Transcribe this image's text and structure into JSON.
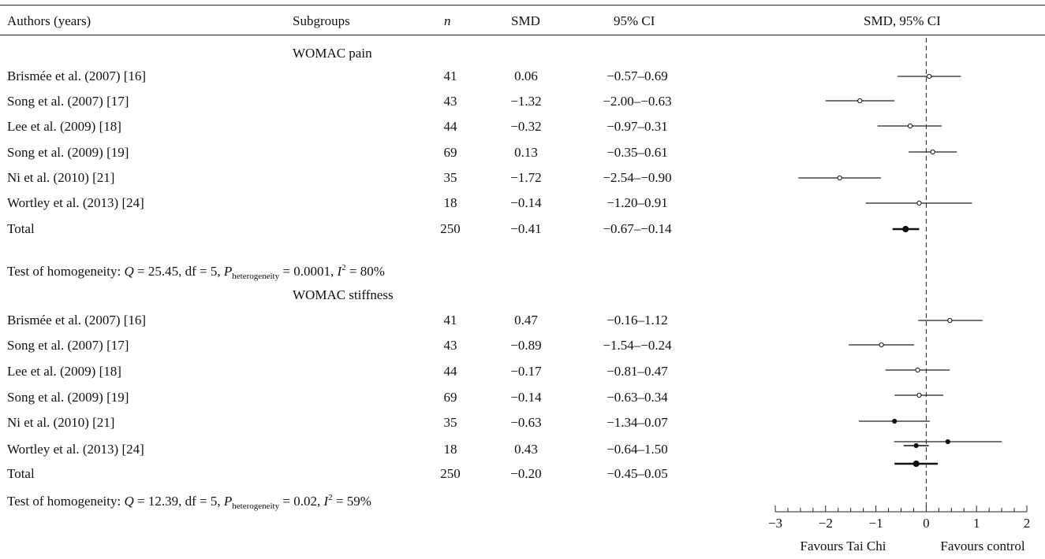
{
  "headers": {
    "study": "Authors (years)",
    "subgroups": "Subgroups",
    "n": "n",
    "smd": "SMD",
    "ci": "95% CI",
    "plot": "SMD, 95% CI"
  },
  "chart_data": {
    "type": "forest",
    "xlim": [
      -3,
      2
    ],
    "x_ticks": [
      "−3",
      "−2",
      "−1",
      "0",
      "1",
      "2"
    ],
    "x_tick_values": [
      -3,
      -2,
      -1,
      0,
      1,
      2
    ],
    "favours_left": "Favours Tai Chi",
    "favours_right": "Favours control",
    "reference_line": 0,
    "groups": [
      {
        "name": "WOMAC pain",
        "studies": [
          {
            "study": "Brismée et al. (2007) [16]",
            "n": "41",
            "smd_text": "0.06",
            "ci_text": "−0.57–0.69",
            "smd": 0.06,
            "lo": -0.57,
            "hi": 0.69,
            "filled": false
          },
          {
            "study": "Song et al. (2007) [17]",
            "n": "43",
            "smd_text": "−1.32",
            "ci_text": "−2.00–−0.63",
            "smd": -1.32,
            "lo": -2.0,
            "hi": -0.63,
            "filled": false
          },
          {
            "study": "Lee et al. (2009) [18]",
            "n": "44",
            "smd_text": "−0.32",
            "ci_text": "−0.97–0.31",
            "smd": -0.32,
            "lo": -0.97,
            "hi": 0.31,
            "filled": false
          },
          {
            "study": "Song et al. (2009) [19]",
            "n": "69",
            "smd_text": "0.13",
            "ci_text": "−0.35–0.61",
            "smd": 0.13,
            "lo": -0.35,
            "hi": 0.61,
            "filled": false
          },
          {
            "study": "Ni et al. (2010) [21]",
            "n": "35",
            "smd_text": "−1.72",
            "ci_text": "−2.54–−0.90",
            "smd": -1.72,
            "lo": -2.54,
            "hi": -0.9,
            "filled": false
          },
          {
            "study": "Wortley et al. (2013) [24]",
            "n": "18",
            "smd_text": "−0.14",
            "ci_text": "−1.20–0.91",
            "smd": -0.14,
            "lo": -1.2,
            "hi": 0.91,
            "filled": false
          }
        ],
        "total": {
          "label": "Total",
          "n": "250",
          "smd_text": "−0.41",
          "ci_text": "−0.67–−0.14",
          "smd": -0.41,
          "lo": -0.67,
          "hi": -0.14
        },
        "homogeneity": {
          "prefix": "Test of homogeneity: ",
          "q_symbol": "Q",
          "q_text": " = 25.45, df = 5, ",
          "p_symbol": "P",
          "p_sub": "heterogeneity",
          "p_text": " = 0.0001, ",
          "i_symbol": "I",
          "i_sup": "2",
          "i_text": " = 80%"
        }
      },
      {
        "name": "WOMAC stiffness",
        "studies": [
          {
            "study": "Brismée et al. (2007) [16]",
            "n": "41",
            "smd_text": "0.47",
            "ci_text": "−0.16–1.12",
            "smd": 0.47,
            "lo": -0.16,
            "hi": 1.12,
            "filled": false
          },
          {
            "study": "Song et al. (2007) [17]",
            "n": "43",
            "smd_text": "−0.89",
            "ci_text": "−1.54–−0.24",
            "smd": -0.89,
            "lo": -1.54,
            "hi": -0.24,
            "filled": false
          },
          {
            "study": "Lee et al. (2009) [18]",
            "n": "44",
            "smd_text": "−0.17",
            "ci_text": "−0.81–0.47",
            "smd": -0.17,
            "lo": -0.81,
            "hi": 0.47,
            "filled": false
          },
          {
            "study": "Song et al. (2009) [19]",
            "n": "69",
            "smd_text": "−0.14",
            "ci_text": "−0.63–0.34",
            "smd": -0.14,
            "lo": -0.63,
            "hi": 0.34,
            "filled": false
          },
          {
            "study": "Ni et al. (2010) [21]",
            "n": "35",
            "smd_text": "−0.63",
            "ci_text": "−1.34–0.07",
            "smd": -0.63,
            "lo": -1.34,
            "hi": 0.07,
            "filled": true
          },
          {
            "study": "Wortley et al. (2013) [24]",
            "n": "18",
            "smd_text": "0.43",
            "ci_text": "−0.64–1.50",
            "smd": 0.43,
            "lo": -0.64,
            "hi": 1.5,
            "filled": true
          }
        ],
        "extra_mark": {
          "smd": -0.2,
          "lo": -0.45,
          "hi": 0.05
        },
        "total": {
          "label": "Total",
          "n": "250",
          "smd_text": "−0.20",
          "ci_text": "−0.45–0.05",
          "smd": -0.2,
          "lo": -0.63,
          "hi": 0.23
        },
        "homogeneity": {
          "prefix": "Test of homogeneity: ",
          "q_symbol": "Q",
          "q_text": " = 12.39, df = 5, ",
          "p_symbol": "P",
          "p_sub": "heterogeneity",
          "p_text": " = 0.02, ",
          "i_symbol": "I",
          "i_sup": "2",
          "i_text": "  = 59%"
        }
      }
    ]
  }
}
